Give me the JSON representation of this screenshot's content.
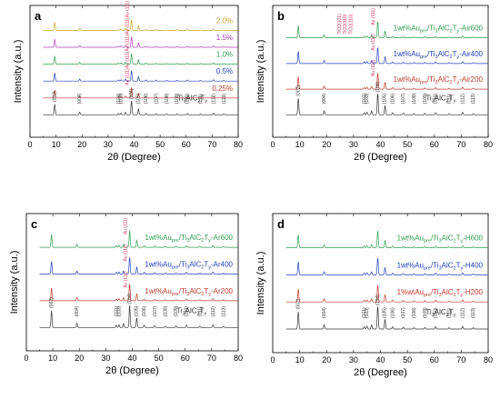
{
  "chart_data": [
    {
      "panel": "a",
      "type": "line",
      "xlabel": "2θ (Degree)",
      "ylabel": "Intensity (a.u.)",
      "xlim": [
        0,
        80
      ],
      "x_ticks": [
        "0",
        "10",
        "20",
        "30",
        "40",
        "50",
        "60",
        "70",
        "80"
      ],
      "series": [
        {
          "name": "Ti3AlC2Ty",
          "label_parts": [
            [
              "Ti",
              ""
            ],
            [
              "3",
              "sub"
            ],
            [
              "AlC",
              ""
            ],
            [
              "2",
              "sub"
            ],
            [
              "T",
              ""
            ],
            [
              "y",
              "sub"
            ]
          ],
          "color": "#333333"
        },
        {
          "name": "0.25%",
          "label_parts": [
            [
              "0.25%",
              ""
            ]
          ],
          "color": "#c0392b"
        },
        {
          "name": "0.5%",
          "label_parts": [
            [
              "0.5%",
              ""
            ]
          ],
          "color": "#2040c0"
        },
        {
          "name": "1.0%",
          "label_parts": [
            [
              "1.0%",
              ""
            ]
          ],
          "color": "#2e9e4e"
        },
        {
          "name": "1.5%",
          "label_parts": [
            [
              "1.5%",
              ""
            ]
          ],
          "color": "#b040b8"
        },
        {
          "name": "2.0%",
          "label_parts": [
            [
              "2.0%",
              ""
            ]
          ],
          "color": "#c9a227"
        }
      ],
      "ref_peaks": [
        {
          "x": 9.5,
          "label": "(002)"
        },
        {
          "x": 19.1,
          "label": "(004)"
        },
        {
          "x": 34.0,
          "label": "(101)"
        },
        {
          "x": 35.0,
          "label": "(103)"
        },
        {
          "x": 39.0,
          "label": "(104)"
        },
        {
          "x": 41.5,
          "label": "(105)"
        },
        {
          "x": 44.5,
          "label": "(106)"
        },
        {
          "x": 48.5,
          "label": "(107)"
        },
        {
          "x": 52.5,
          "label": "(108)"
        },
        {
          "x": 56.5,
          "label": "(109)"
        },
        {
          "x": 60.5,
          "label": "(110)"
        },
        {
          "x": 65.5,
          "label": "(111)"
        },
        {
          "x": 70.5,
          "label": "(112)"
        },
        {
          "x": 74.5,
          "label": "(113)"
        }
      ],
      "au_peak": {
        "x": 38.2,
        "label": "Au (111)"
      },
      "extra_labels": []
    },
    {
      "panel": "b",
      "type": "line",
      "xlabel": "2θ (Degree)",
      "ylabel": "Intensity (a.u.)",
      "xlim": [
        0,
        80
      ],
      "x_ticks": [
        "0",
        "10",
        "20",
        "30",
        "40",
        "50",
        "60",
        "70",
        "80"
      ],
      "series": [
        {
          "name": "Ti3AlC2Ty",
          "label_parts": [
            [
              "Ti",
              ""
            ],
            [
              "3",
              "sub"
            ],
            [
              "AlC",
              ""
            ],
            [
              "2",
              "sub"
            ],
            [
              "T",
              ""
            ],
            [
              "y",
              "sub"
            ]
          ],
          "color": "#333333"
        },
        {
          "name": "1wt%Aupre/Ti3AlC2Ty-Air200",
          "label_parts": [
            [
              "1wt%Au",
              ""
            ],
            [
              "pre",
              "sub"
            ],
            [
              "/Ti",
              ""
            ],
            [
              "3",
              "sub"
            ],
            [
              "AlC",
              ""
            ],
            [
              "2",
              "sub"
            ],
            [
              "T",
              ""
            ],
            [
              "y",
              "sub"
            ],
            [
              "-Air200",
              ""
            ]
          ],
          "color": "#c0392b"
        },
        {
          "name": "1wt%Aupre/Ti3AlC2Ty-Air400",
          "label_parts": [
            [
              "1wt%Au",
              ""
            ],
            [
              "pre",
              "sub"
            ],
            [
              "/Ti",
              ""
            ],
            [
              "3",
              "sub"
            ],
            [
              "AlC",
              ""
            ],
            [
              "2",
              "sub"
            ],
            [
              "T",
              ""
            ],
            [
              "y",
              "sub"
            ],
            [
              "-Air400",
              ""
            ]
          ],
          "color": "#2040c0"
        },
        {
          "name": "1wt%Aupre/Ti3AlC2Ty-Air600",
          "label_parts": [
            [
              "1wt%Au",
              ""
            ],
            [
              "pre",
              "sub"
            ],
            [
              "/Ti",
              ""
            ],
            [
              "3",
              "sub"
            ],
            [
              "AlC",
              ""
            ],
            [
              "2",
              "sub"
            ],
            [
              "T",
              ""
            ],
            [
              "y",
              "sub"
            ],
            [
              "-Air600",
              ""
            ]
          ],
          "color": "#2e9e4e"
        }
      ],
      "ref_peaks": [
        {
          "x": 9.5,
          "label": "(002)"
        },
        {
          "x": 19.1,
          "label": "(004)"
        },
        {
          "x": 34.0,
          "label": "(101)"
        },
        {
          "x": 35.0,
          "label": "(103)"
        },
        {
          "x": 39.0,
          "label": "(104)"
        },
        {
          "x": 41.5,
          "label": "(105)"
        },
        {
          "x": 44.5,
          "label": "(106)"
        },
        {
          "x": 48.5,
          "label": "(107)"
        },
        {
          "x": 52.5,
          "label": "(108)"
        },
        {
          "x": 56.5,
          "label": "(109)"
        },
        {
          "x": 60.5,
          "label": "(110)"
        },
        {
          "x": 65.5,
          "label": "(111)"
        },
        {
          "x": 70.5,
          "label": "(112)"
        },
        {
          "x": 74.5,
          "label": "(113)"
        }
      ],
      "au_peak": {
        "x": 38.2,
        "label": "Au (111)"
      },
      "extra_labels": [
        {
          "x": 25.3,
          "label": "TiO2(101)"
        },
        {
          "x": 27.4,
          "label": "TiO2(110)"
        },
        {
          "x": 29.5,
          "label": "TiO2(110)"
        }
      ]
    },
    {
      "panel": "c",
      "type": "line",
      "xlabel": "2θ (Degree)",
      "ylabel": "Intensity (a.u.)",
      "xlim": [
        0,
        80
      ],
      "x_ticks": [
        "0",
        "10",
        "20",
        "30",
        "40",
        "50",
        "60",
        "70",
        "80"
      ],
      "series": [
        {
          "name": "Ti3AlC2Ty",
          "label_parts": [
            [
              "Ti",
              ""
            ],
            [
              "3",
              "sub"
            ],
            [
              "AlC",
              ""
            ],
            [
              "2",
              "sub"
            ],
            [
              "T",
              ""
            ],
            [
              "y",
              "sub"
            ]
          ],
          "color": "#333333"
        },
        {
          "name": "1wt%Aupre/Ti3AlC2Ty-Ar200",
          "label_parts": [
            [
              "1wt%Au",
              ""
            ],
            [
              "pre",
              "sub"
            ],
            [
              "/Ti",
              ""
            ],
            [
              "3",
              "sub"
            ],
            [
              "AlC",
              ""
            ],
            [
              "2",
              "sub"
            ],
            [
              "T",
              ""
            ],
            [
              "y",
              "sub"
            ],
            [
              "-Ar200",
              ""
            ]
          ],
          "color": "#c0392b"
        },
        {
          "name": "1wt%Aupre/Ti3AlC2Ty-Ar400",
          "label_parts": [
            [
              "1wt%Au",
              ""
            ],
            [
              "pre",
              "sub"
            ],
            [
              "/Ti",
              ""
            ],
            [
              "3",
              "sub"
            ],
            [
              "AlC",
              ""
            ],
            [
              "2",
              "sub"
            ],
            [
              "T",
              ""
            ],
            [
              "y",
              "sub"
            ],
            [
              "-Ar400",
              ""
            ]
          ],
          "color": "#2040c0"
        },
        {
          "name": "1wt%Aupre/Ti3AlC2Ty-Ar600",
          "label_parts": [
            [
              "1wt%Au",
              ""
            ],
            [
              "pre",
              "sub"
            ],
            [
              "/Ti",
              ""
            ],
            [
              "3",
              "sub"
            ],
            [
              "AlC",
              ""
            ],
            [
              "2",
              "sub"
            ],
            [
              "T",
              ""
            ],
            [
              "y",
              "sub"
            ],
            [
              "-Ar600",
              ""
            ]
          ],
          "color": "#2e9e4e"
        }
      ],
      "ref_peaks": [
        {
          "x": 9.5,
          "label": "(002)"
        },
        {
          "x": 19.1,
          "label": "(004)"
        },
        {
          "x": 34.0,
          "label": "(101)"
        },
        {
          "x": 35.0,
          "label": "(103)"
        },
        {
          "x": 39.0,
          "label": "(104)"
        },
        {
          "x": 41.5,
          "label": "(105)"
        },
        {
          "x": 44.5,
          "label": "(106)"
        },
        {
          "x": 48.5,
          "label": "(107)"
        },
        {
          "x": 52.5,
          "label": "(108)"
        },
        {
          "x": 56.5,
          "label": "(109)"
        },
        {
          "x": 60.5,
          "label": "(110)"
        },
        {
          "x": 65.5,
          "label": "(111)"
        },
        {
          "x": 70.5,
          "label": "(112)"
        },
        {
          "x": 74.5,
          "label": "(113)"
        }
      ],
      "au_peak": {
        "x": 38.2,
        "label": "Au (111)"
      },
      "extra_labels": []
    },
    {
      "panel": "d",
      "type": "line",
      "xlabel": "2θ (Degree)",
      "ylabel": "Intensity (a.u.)",
      "xlim": [
        0,
        80
      ],
      "x_ticks": [
        "0",
        "10",
        "20",
        "30",
        "40",
        "50",
        "60",
        "70",
        "80"
      ],
      "series": [
        {
          "name": "Ti3AlC2Ty",
          "label_parts": [
            [
              "Ti",
              ""
            ],
            [
              "3",
              "sub"
            ],
            [
              "AlC",
              ""
            ],
            [
              "2",
              "sub"
            ],
            [
              "T",
              ""
            ],
            [
              "y",
              "sub"
            ]
          ],
          "color": "#333333"
        },
        {
          "name": "1%wtAupre/Ti3AlC2Ty-H200",
          "label_parts": [
            [
              "1%wtAu",
              ""
            ],
            [
              "pre",
              "sub"
            ],
            [
              "/Ti",
              ""
            ],
            [
              "3",
              "sub"
            ],
            [
              "AlC",
              ""
            ],
            [
              "2",
              "sub"
            ],
            [
              "T",
              ""
            ],
            [
              "y",
              "sub"
            ],
            [
              "-H200",
              ""
            ]
          ],
          "color": "#c0392b"
        },
        {
          "name": "1wt%Aupre/Ti3AlC2Ty-H400",
          "label_parts": [
            [
              "1wt%Au",
              ""
            ],
            [
              "pre",
              "sub"
            ],
            [
              "/Ti",
              ""
            ],
            [
              "3",
              "sub"
            ],
            [
              "AlC",
              ""
            ],
            [
              "2",
              "sub"
            ],
            [
              "T",
              ""
            ],
            [
              "y",
              "sub"
            ],
            [
              "-H400",
              ""
            ]
          ],
          "color": "#2040c0"
        },
        {
          "name": "1wt%Aupre/Ti3AlC2Ty-H600",
          "label_parts": [
            [
              "1wt%Au",
              ""
            ],
            [
              "pre",
              "sub"
            ],
            [
              "/Ti",
              ""
            ],
            [
              "3",
              "sub"
            ],
            [
              "AlC",
              ""
            ],
            [
              "2",
              "sub"
            ],
            [
              "T",
              ""
            ],
            [
              "y",
              "sub"
            ],
            [
              "-H600",
              ""
            ]
          ],
          "color": "#2e9e4e"
        }
      ],
      "ref_peaks": [
        {
          "x": 9.5,
          "label": "(002)"
        },
        {
          "x": 19.1,
          "label": "(004)"
        },
        {
          "x": 34.0,
          "label": "(101)"
        },
        {
          "x": 35.0,
          "label": "(103)"
        },
        {
          "x": 39.0,
          "label": "(104)"
        },
        {
          "x": 41.5,
          "label": "(105)"
        },
        {
          "x": 44.5,
          "label": "(106)"
        },
        {
          "x": 48.5,
          "label": "(107)"
        },
        {
          "x": 52.5,
          "label": "(108)"
        },
        {
          "x": 56.5,
          "label": "(109)"
        },
        {
          "x": 60.5,
          "label": "(110)"
        },
        {
          "x": 65.5,
          "label": "(111)"
        },
        {
          "x": 70.5,
          "label": "(112)"
        },
        {
          "x": 74.5,
          "label": "(113)"
        }
      ],
      "au_peak": null,
      "extra_labels": []
    }
  ]
}
